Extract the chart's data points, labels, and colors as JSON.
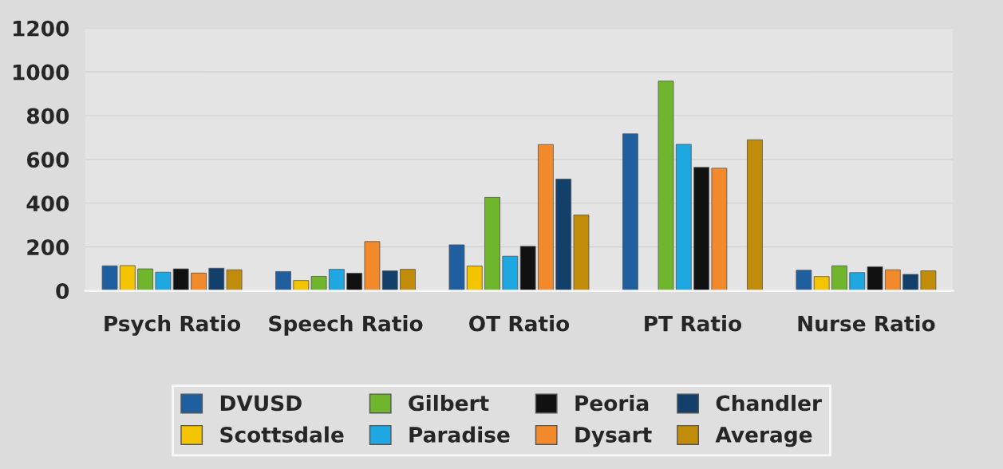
{
  "chart_data": {
    "type": "bar",
    "categories": [
      "Psych Ratio",
      "Speech Ratio",
      "OT Ratio",
      "PT Ratio",
      "Nurse Ratio"
    ],
    "series": [
      {
        "name": "DVUSD",
        "color": "#1f5fa0",
        "values": [
          114,
          88,
          210,
          717,
          94
        ]
      },
      {
        "name": "Scottsdale",
        "color": "#f5c400",
        "values": [
          115,
          47,
          113,
          null,
          65
        ]
      },
      {
        "name": "Gilbert",
        "color": "#6fb62c",
        "values": [
          100,
          66,
          427,
          958,
          114
        ]
      },
      {
        "name": "Paradise",
        "color": "#1ea7e0",
        "values": [
          85,
          98,
          158,
          669,
          83
        ]
      },
      {
        "name": "Peoria",
        "color": "#111111",
        "values": [
          100,
          80,
          203,
          564,
          110
        ]
      },
      {
        "name": "Dysart",
        "color": "#f28a2c",
        "values": [
          81,
          225,
          668,
          560,
          96
        ]
      },
      {
        "name": "Chandler",
        "color": "#12406a",
        "values": [
          103,
          91,
          510,
          null,
          75
        ]
      },
      {
        "name": "Average",
        "color": "#c08c0a",
        "values": [
          96,
          98,
          346,
          690,
          91
        ]
      }
    ],
    "ylim": [
      0,
      1200
    ],
    "yticks": [
      0,
      200,
      400,
      600,
      800,
      1000,
      1200
    ],
    "grid": "y",
    "legend": "bottom"
  }
}
